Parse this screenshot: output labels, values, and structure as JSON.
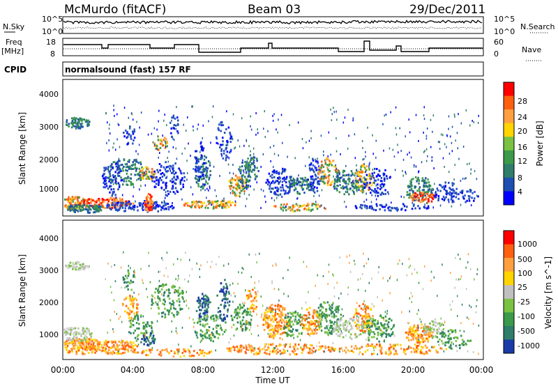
{
  "header": {
    "station": "McMurdo (fitACF)",
    "beam": "Beam 03",
    "date": "29/Dec/2011"
  },
  "noise_panel": {
    "left_label": "N.Sky",
    "right_label": "N.Search",
    "left_ticks": [
      "10^5",
      "10^0"
    ],
    "right_ticks": [
      "10^5",
      "10^0"
    ]
  },
  "freq_panel": {
    "left_label_1": "Freq",
    "left_label_2": "[MHz]",
    "right_label": "Nave",
    "left_ticks": [
      "18",
      "8"
    ],
    "right_ticks": [
      "60",
      "0"
    ]
  },
  "cpid": {
    "label": "CPID",
    "value": "normalsound (fast) 157 RF"
  },
  "axes": {
    "ylabel": "Slant Range [km]",
    "yticks": [
      "4000",
      "3000",
      "2000",
      "1000"
    ],
    "xlabel": "Time UT",
    "xticks": [
      "00:00",
      "04:00",
      "08:00",
      "12:00",
      "16:00",
      "20:00",
      "00:00"
    ]
  },
  "power_scale": {
    "label": "Power [dB]",
    "ticks": [
      "28",
      "24",
      "20",
      "16",
      "12",
      "8",
      "4"
    ],
    "colors": [
      "#0000ff",
      "#1f4fb0",
      "#2f7d6a",
      "#3c9a4a",
      "#7ac242",
      "#ffd400",
      "#ffa040",
      "#ff6010",
      "#ff0000"
    ]
  },
  "velocity_scale": {
    "label": "Velocity [m s^-1]",
    "ticks": [
      "1000",
      "500",
      "100",
      "25",
      "-25",
      "-100",
      "-500",
      "-1000"
    ],
    "colors": [
      "#1a3aa8",
      "#2f7d6a",
      "#3c9a4a",
      "#7ac242",
      "#c0c0c0",
      "#ffd400",
      "#ffa040",
      "#ff6010",
      "#ff0000"
    ]
  },
  "chart_data": [
    {
      "type": "heatmap",
      "title": "Power",
      "x_range_hours": [
        0,
        24
      ],
      "y_range_km": [
        180,
        4500
      ],
      "colorbar_range_db": [
        0,
        30
      ]
    },
    {
      "type": "heatmap",
      "title": "Velocity",
      "x_range_hours": [
        0,
        24
      ],
      "y_range_km": [
        180,
        4500
      ],
      "colorbar_range_ms": [
        -1000,
        1000
      ]
    }
  ]
}
